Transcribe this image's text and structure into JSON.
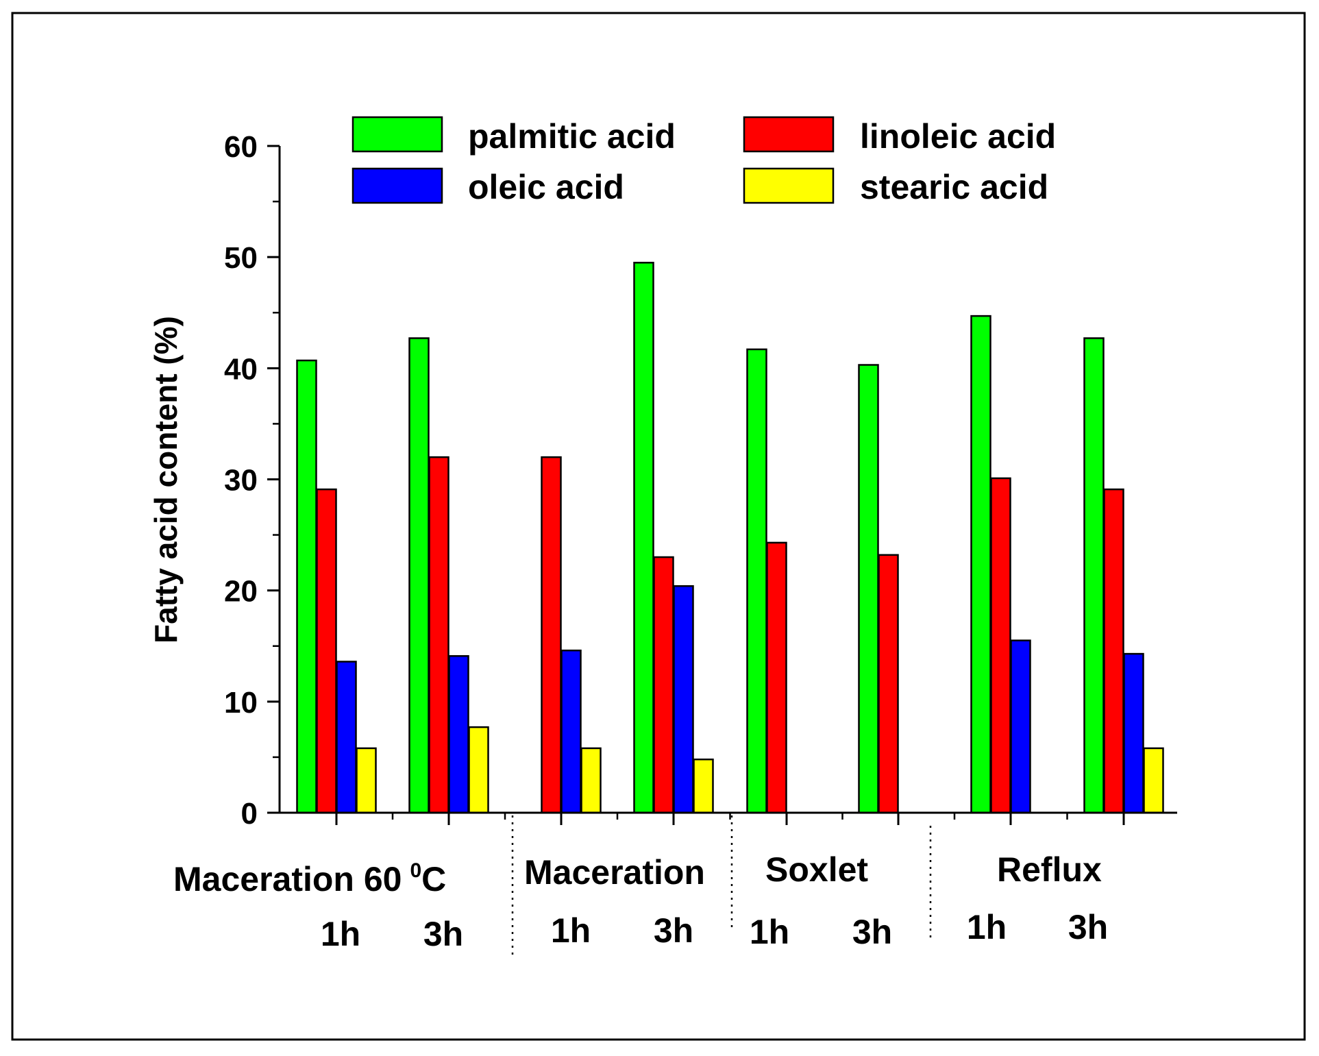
{
  "chart_data": {
    "type": "bar",
    "title": "",
    "xlabel": "",
    "ylabel": "Fatty acid content (%)",
    "ylim": [
      0,
      60
    ],
    "yticks": [
      "0",
      "10",
      "20",
      "30",
      "40",
      "50",
      "60"
    ],
    "series": [
      {
        "name": "palmitic acid",
        "color": "#00ff00",
        "values": [
          40.7,
          42.7,
          0,
          49.5,
          41.7,
          40.3,
          44.7,
          42.7
        ]
      },
      {
        "name": "linoleic acid",
        "color": "#ff0000",
        "values": [
          29.1,
          32.0,
          32.0,
          23.0,
          24.3,
          23.2,
          30.1,
          29.1
        ]
      },
      {
        "name": "oleic acid",
        "color": "#0000ff",
        "values": [
          13.6,
          14.1,
          14.6,
          20.4,
          0,
          0,
          15.5,
          14.3
        ]
      },
      {
        "name": "stearic acid",
        "color": "#ffff00",
        "values": [
          5.8,
          7.7,
          5.8,
          4.8,
          0,
          0,
          0,
          5.8
        ]
      }
    ],
    "categories": [
      "1h",
      "3h",
      "1h",
      "3h",
      "1h",
      "3h",
      "1h",
      "3h"
    ],
    "groups": [
      {
        "label": "Maceration 60",
        "superscript": "0",
        "suffix": "C",
        "categories": [
          "1h",
          "3h"
        ]
      },
      {
        "label": "Maceration",
        "categories": [
          "1h",
          "3h"
        ]
      },
      {
        "label": "Soxlet",
        "categories": [
          "1h",
          "3h"
        ]
      },
      {
        "label": "Reflux",
        "categories": [
          "1h",
          "3h"
        ]
      }
    ],
    "legend": {
      "placement": "top",
      "columns": 2
    }
  }
}
